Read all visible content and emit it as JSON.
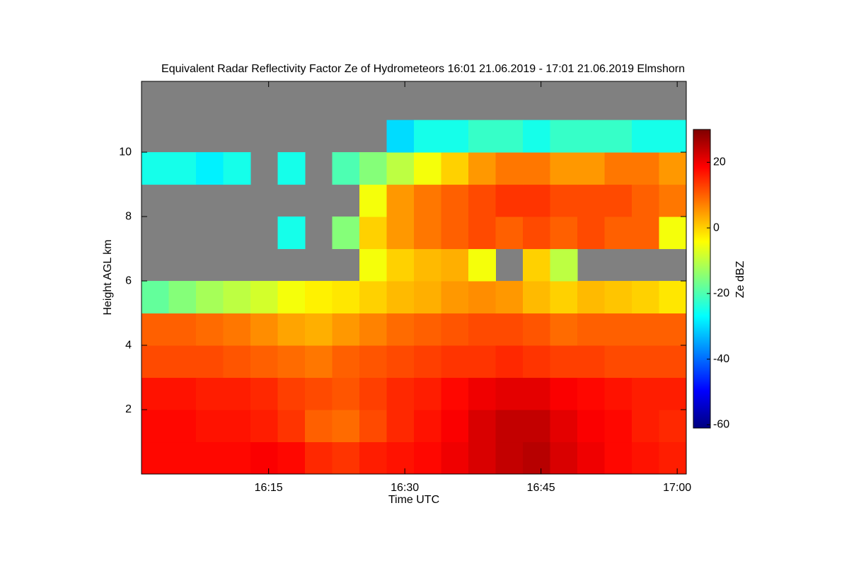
{
  "chart_data": {
    "type": "heatmap",
    "title": "Equivalent Radar Reflectivity Factor Ze of Hydrometeors   16:01 21.06.2019 - 17:01 21.06.2019 Elmshorn",
    "xlabel": "Time UTC",
    "ylabel": "Height AGL km",
    "colorbar_label": "Ze dBZ",
    "xlim": [
      "16:01",
      "17:01"
    ],
    "xticks": [
      "16:15",
      "16:30",
      "16:45",
      "17:00"
    ],
    "ylim": [
      0,
      12.2
    ],
    "yticks": [
      2,
      4,
      6,
      8,
      10
    ],
    "zlim": [
      -61,
      30
    ],
    "zticks": [
      -60,
      -40,
      -20,
      0,
      20
    ],
    "colormap": [
      "#00007f",
      "#0000ff",
      "#007fff",
      "#00ffff",
      "#7fff7f",
      "#ffff00",
      "#ff7f00",
      "#ff0000",
      "#7f0000"
    ],
    "nodata_color": "#808080",
    "x": [
      "16:01",
      "16:04",
      "16:07",
      "16:10",
      "16:13",
      "16:16",
      "16:19",
      "16:22",
      "16:25",
      "16:28",
      "16:31",
      "16:34",
      "16:37",
      "16:40",
      "16:43",
      "16:46",
      "16:49",
      "16:52",
      "16:55",
      "16:58"
    ],
    "y": [
      0,
      1,
      2,
      3,
      4,
      5,
      6,
      7,
      8,
      9,
      10,
      11
    ],
    "values": [
      [
        18,
        18,
        18,
        18,
        19,
        18,
        15,
        14,
        16,
        17,
        18,
        20,
        22,
        24,
        25,
        22,
        20,
        18,
        17,
        16
      ],
      [
        18,
        18,
        17,
        17,
        16,
        14,
        10,
        9,
        12,
        15,
        17,
        19,
        22,
        24,
        24,
        21,
        19,
        18,
        16,
        15
      ],
      [
        17,
        17,
        16,
        16,
        15,
        13,
        12,
        11,
        13,
        15,
        16,
        18,
        20,
        21,
        21,
        19,
        18,
        17,
        16,
        16
      ],
      [
        12,
        12,
        12,
        11,
        10,
        9,
        8,
        10,
        11,
        12,
        13,
        14,
        14,
        15,
        14,
        13,
        13,
        12,
        12,
        12
      ],
      [
        10,
        10,
        9,
        8,
        6,
        4,
        3,
        5,
        7,
        9,
        10,
        11,
        12,
        12,
        11,
        9,
        10,
        10,
        10,
        10
      ],
      [
        -18,
        -15,
        -12,
        -10,
        -8,
        -5,
        -3,
        -2,
        0,
        2,
        3,
        5,
        6,
        5,
        2,
        0,
        2,
        1,
        0,
        -2
      ],
      [
        null,
        null,
        null,
        null,
        null,
        null,
        null,
        null,
        -5,
        0,
        2,
        3,
        -5,
        null,
        0,
        -10,
        null,
        null,
        null,
        null
      ],
      [
        null,
        null,
        null,
        null,
        null,
        -25,
        null,
        -15,
        0,
        5,
        8,
        10,
        12,
        10,
        12,
        10,
        12,
        10,
        10,
        -5
      ],
      [
        null,
        null,
        null,
        null,
        null,
        null,
        null,
        null,
        -5,
        5,
        8,
        10,
        12,
        14,
        14,
        12,
        12,
        12,
        10,
        8
      ],
      [
        -25,
        -25,
        -28,
        -25,
        null,
        -25,
        null,
        -20,
        -15,
        -10,
        -5,
        0,
        5,
        8,
        8,
        5,
        5,
        8,
        8,
        5
      ],
      [
        null,
        null,
        null,
        null,
        null,
        null,
        null,
        null,
        null,
        -30,
        -25,
        -25,
        -22,
        -22,
        -25,
        -22,
        -22,
        -22,
        -25,
        -25
      ],
      [
        null,
        null,
        null,
        null,
        null,
        null,
        null,
        null,
        null,
        null,
        null,
        null,
        null,
        null,
        null,
        null,
        null,
        null,
        null,
        null
      ]
    ]
  }
}
